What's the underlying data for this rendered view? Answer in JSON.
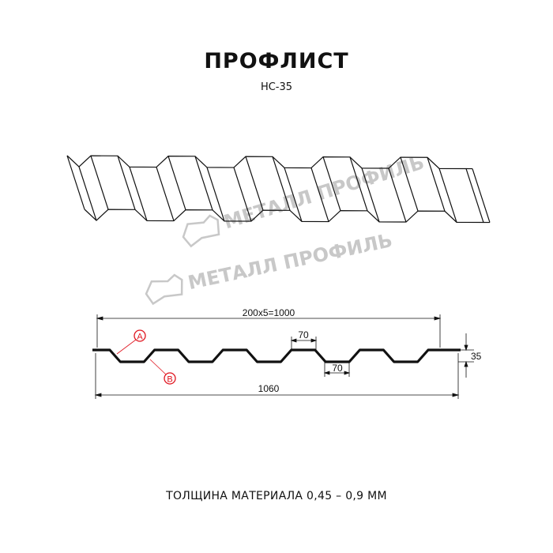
{
  "header": {
    "title": "ПРОФЛИСТ",
    "subtitle": "НС-35"
  },
  "watermark": {
    "text": "МЕТАЛЛ ПРОФИЛЬ"
  },
  "drawing": {
    "overall_pitch_label": "200x5=1000",
    "top_rib_width_label": "70",
    "bottom_rib_width_label": "70",
    "height_label": "35",
    "total_width_label": "1060",
    "marker_a": "A",
    "marker_b": "B"
  },
  "colors": {
    "line": "#111111",
    "marker": "#e0141e",
    "watermark": "#c8c8c8"
  },
  "footer": {
    "thickness": "ТОЛЩИНА МАТЕРИАЛА 0,45 – 0,9 ММ"
  }
}
